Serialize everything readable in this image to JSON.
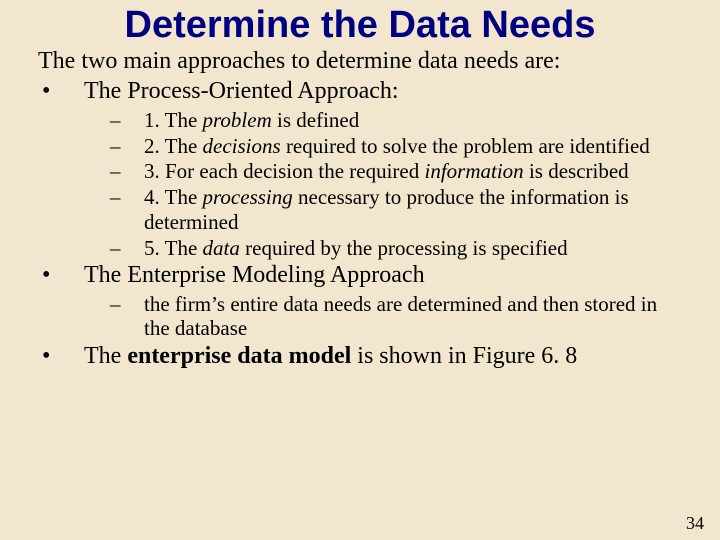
{
  "colors": {
    "background": "#f2e6cf",
    "title": "#000080",
    "body": "#000000"
  },
  "typography": {
    "title_family": "Arial",
    "title_weight": "bold",
    "title_size_pt": 38,
    "body_family": "Times New Roman",
    "level1_size_pt": 24,
    "level2_size_pt": 21
  },
  "title": "Determine the Data Needs",
  "intro": "The two main approaches to determine data needs are:",
  "bullets": {
    "a1": {
      "mark": "•",
      "text": "The Process-Oriented Approach:"
    },
    "a1_sub": {
      "s1": {
        "mark": "–",
        "n": "1. The ",
        "em": "problem",
        "rest": " is defined"
      },
      "s2": {
        "mark": "–",
        "n": "2. The ",
        "em": "decisions",
        "rest": " required to solve the problem are identified"
      },
      "s3": {
        "mark": "–",
        "n": "3. For each decision the required ",
        "em": "information",
        "rest": " is described"
      },
      "s4": {
        "mark": "–",
        "n": "4. The ",
        "em": "processing",
        "rest": " necessary to produce the information is determined"
      },
      "s5": {
        "mark": "–",
        "n": "5. The ",
        "em": "data",
        "rest": " required by the processing is specified"
      }
    },
    "a2": {
      "mark": "•",
      "text": "The Enterprise Modeling Approach"
    },
    "a2_sub": {
      "s1": {
        "mark": "–",
        "text": "the firm’s entire data needs are determined and then stored in the database"
      }
    },
    "a3": {
      "mark": "•",
      "pre": "The ",
      "strong": "enterprise data model",
      "post": " is shown in Figure 6. 8"
    }
  },
  "page_number": "34"
}
